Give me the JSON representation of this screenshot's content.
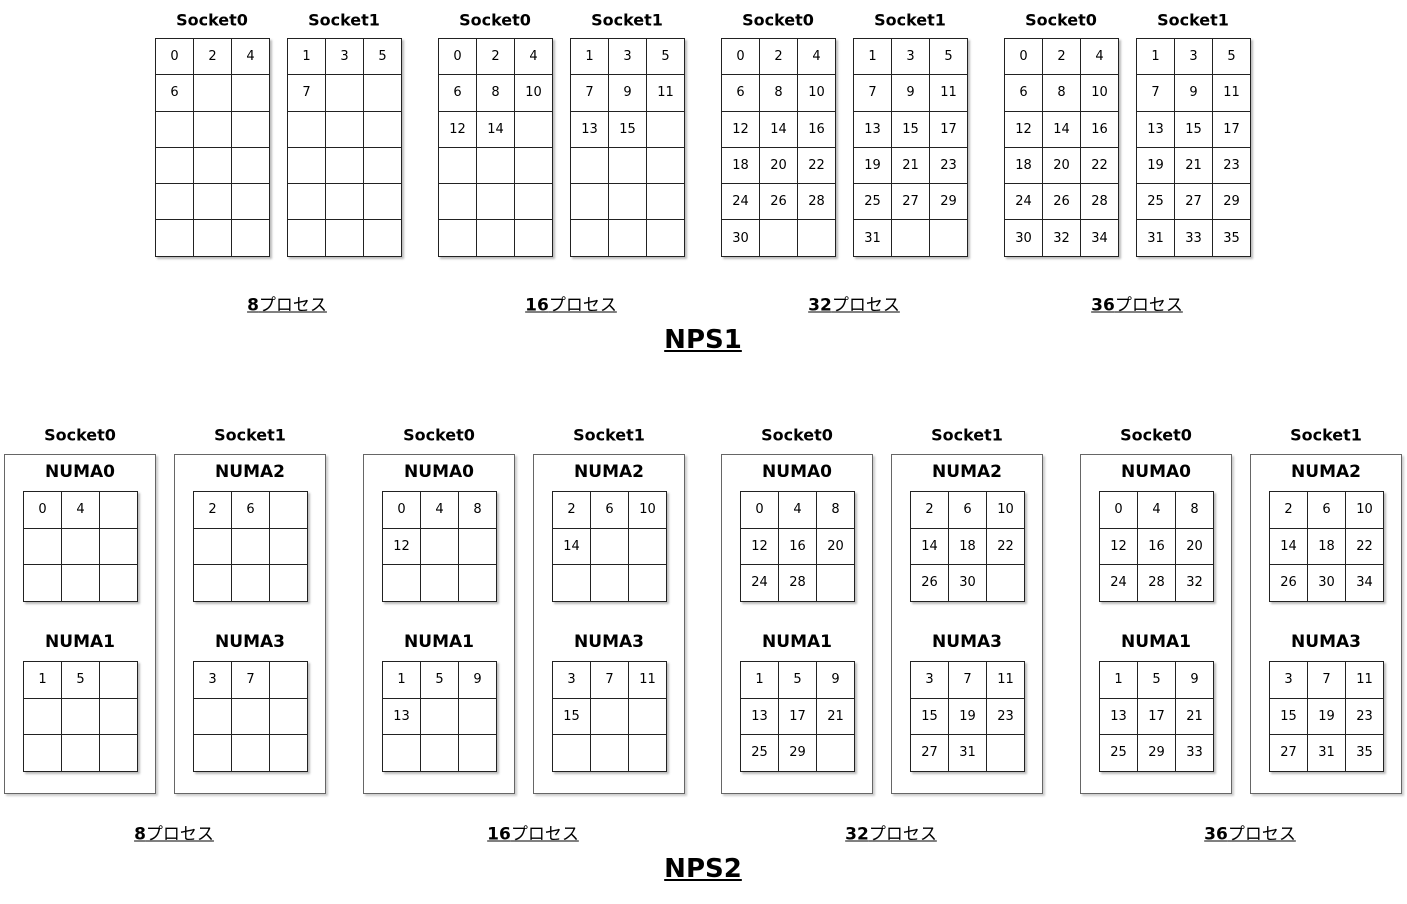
{
  "nps1": {
    "title": "NPS1",
    "unit": "プロセス",
    "groups": [
      {
        "count": "8",
        "sockets": [
          {
            "label": "Socket0",
            "cores": [
              0,
              2,
              4,
              6
            ]
          },
          {
            "label": "Socket1",
            "cores": [
              1,
              3,
              5,
              7
            ]
          }
        ]
      },
      {
        "count": "16",
        "sockets": [
          {
            "label": "Socket0",
            "cores": [
              0,
              2,
              4,
              6,
              8,
              10,
              12,
              14
            ]
          },
          {
            "label": "Socket1",
            "cores": [
              1,
              3,
              5,
              7,
              9,
              11,
              13,
              15
            ]
          }
        ]
      },
      {
        "count": "32",
        "sockets": [
          {
            "label": "Socket0",
            "cores": [
              0,
              2,
              4,
              6,
              8,
              10,
              12,
              14,
              16,
              18,
              20,
              22,
              24,
              26,
              28,
              30
            ]
          },
          {
            "label": "Socket1",
            "cores": [
              1,
              3,
              5,
              7,
              9,
              11,
              13,
              15,
              17,
              19,
              21,
              23,
              25,
              27,
              29,
              31
            ]
          }
        ]
      },
      {
        "count": "36",
        "sockets": [
          {
            "label": "Socket0",
            "cores": [
              0,
              2,
              4,
              6,
              8,
              10,
              12,
              14,
              16,
              18,
              20,
              22,
              24,
              26,
              28,
              30,
              32,
              34
            ]
          },
          {
            "label": "Socket1",
            "cores": [
              1,
              3,
              5,
              7,
              9,
              11,
              13,
              15,
              17,
              19,
              21,
              23,
              25,
              27,
              29,
              31,
              33,
              35
            ]
          }
        ]
      }
    ]
  },
  "nps2": {
    "title": "NPS2",
    "unit": "プロセス",
    "groups": [
      {
        "count": "8",
        "sockets": [
          {
            "label": "Socket0",
            "numas": [
              {
                "label": "NUMA0",
                "cores": [
                  0,
                  4
                ]
              },
              {
                "label": "NUMA1",
                "cores": [
                  1,
                  5
                ]
              }
            ]
          },
          {
            "label": "Socket1",
            "numas": [
              {
                "label": "NUMA2",
                "cores": [
                  2,
                  6
                ]
              },
              {
                "label": "NUMA3",
                "cores": [
                  3,
                  7
                ]
              }
            ]
          }
        ]
      },
      {
        "count": "16",
        "sockets": [
          {
            "label": "Socket0",
            "numas": [
              {
                "label": "NUMA0",
                "cores": [
                  0,
                  4,
                  8,
                  12
                ]
              },
              {
                "label": "NUMA1",
                "cores": [
                  1,
                  5,
                  9,
                  13
                ]
              }
            ]
          },
          {
            "label": "Socket1",
            "numas": [
              {
                "label": "NUMA2",
                "cores": [
                  2,
                  6,
                  10,
                  14
                ]
              },
              {
                "label": "NUMA3",
                "cores": [
                  3,
                  7,
                  11,
                  15
                ]
              }
            ]
          }
        ]
      },
      {
        "count": "32",
        "sockets": [
          {
            "label": "Socket0",
            "numas": [
              {
                "label": "NUMA0",
                "cores": [
                  0,
                  4,
                  8,
                  12,
                  16,
                  20,
                  24,
                  28
                ]
              },
              {
                "label": "NUMA1",
                "cores": [
                  1,
                  5,
                  9,
                  13,
                  17,
                  21,
                  25,
                  29
                ]
              }
            ]
          },
          {
            "label": "Socket1",
            "numas": [
              {
                "label": "NUMA2",
                "cores": [
                  2,
                  6,
                  10,
                  14,
                  18,
                  22,
                  26,
                  30
                ]
              },
              {
                "label": "NUMA3",
                "cores": [
                  3,
                  7,
                  11,
                  15,
                  19,
                  23,
                  27,
                  31
                ]
              }
            ]
          }
        ]
      },
      {
        "count": "36",
        "sockets": [
          {
            "label": "Socket0",
            "numas": [
              {
                "label": "NUMA0",
                "cores": [
                  0,
                  4,
                  8,
                  12,
                  16,
                  20,
                  24,
                  28,
                  32
                ]
              },
              {
                "label": "NUMA1",
                "cores": [
                  1,
                  5,
                  9,
                  13,
                  17,
                  21,
                  25,
                  29,
                  33
                ]
              }
            ]
          },
          {
            "label": "Socket1",
            "numas": [
              {
                "label": "NUMA2",
                "cores": [
                  2,
                  6,
                  10,
                  14,
                  18,
                  22,
                  26,
                  30,
                  34
                ]
              },
              {
                "label": "NUMA3",
                "cores": [
                  3,
                  7,
                  11,
                  15,
                  19,
                  23,
                  27,
                  31,
                  35
                ]
              }
            ]
          }
        ]
      }
    ]
  }
}
